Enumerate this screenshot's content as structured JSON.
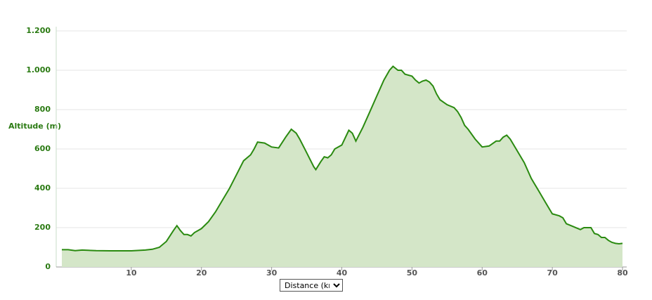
{
  "chart_data": {
    "type": "area",
    "ylabel": "Altitude (m)",
    "xlabel": "Distance (km)",
    "color": "#2a8a10",
    "fill": "#d4e6c8",
    "grid": true,
    "xlim": [
      -0.7,
      80.6
    ],
    "ylim": [
      0,
      1200
    ],
    "xticks": [
      10,
      20,
      30,
      40,
      50,
      60,
      70,
      80
    ],
    "yticks": [
      0,
      200,
      400,
      600,
      800,
      {
        "value": 1000,
        "label": "1.000"
      },
      {
        "value": 1200,
        "label": "1.200"
      }
    ],
    "x": [
      0.1,
      1,
      2,
      3,
      5,
      7,
      10,
      12,
      13,
      14,
      15,
      16,
      16.5,
      17,
      17.5,
      18,
      18.5,
      19,
      20,
      21,
      22,
      23,
      24,
      25,
      26,
      27,
      27.5,
      28,
      29,
      30,
      31,
      32,
      32.8,
      33.5,
      34,
      35,
      36,
      36.3,
      37,
      37.5,
      38,
      38.5,
      39,
      40,
      41,
      41.5,
      42,
      43,
      44,
      45,
      46,
      46.8,
      47.3,
      48,
      48.5,
      49,
      50,
      50.5,
      51,
      51.5,
      52,
      52.5,
      53,
      53.5,
      54,
      55,
      56,
      56.5,
      57,
      57.5,
      58,
      59,
      60,
      61,
      62,
      62.5,
      63,
      63.5,
      64,
      65,
      66,
      67,
      68,
      69,
      70,
      71,
      71.5,
      72,
      73,
      74,
      74.5,
      75,
      75.5,
      76,
      76.5,
      77,
      77.5,
      78,
      78.5,
      79,
      79.5,
      80
    ],
    "values": [
      88,
      88,
      83,
      86,
      83,
      82,
      82,
      86,
      90,
      100,
      130,
      185,
      210,
      185,
      165,
      165,
      158,
      175,
      195,
      230,
      280,
      340,
      400,
      470,
      540,
      570,
      600,
      635,
      630,
      610,
      605,
      660,
      700,
      680,
      650,
      580,
      510,
      495,
      535,
      560,
      555,
      570,
      600,
      620,
      695,
      680,
      640,
      710,
      790,
      870,
      950,
      1000,
      1020,
      1000,
      1000,
      980,
      970,
      950,
      935,
      945,
      950,
      940,
      920,
      880,
      850,
      825,
      810,
      790,
      760,
      720,
      700,
      650,
      610,
      615,
      640,
      640,
      660,
      670,
      650,
      590,
      530,
      450,
      390,
      330,
      270,
      260,
      250,
      220,
      205,
      190,
      200,
      200,
      200,
      170,
      165,
      150,
      150,
      135,
      125,
      120,
      118,
      120
    ]
  }
}
